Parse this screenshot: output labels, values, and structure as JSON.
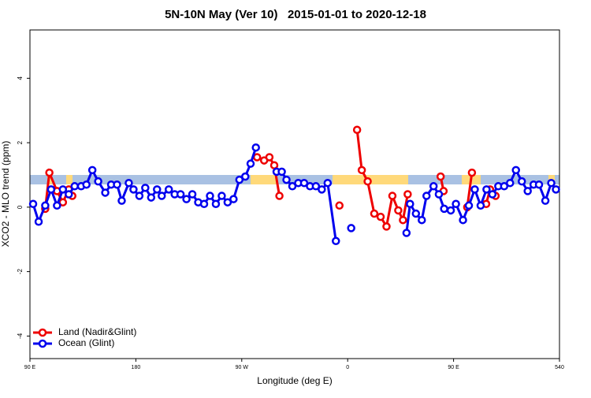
{
  "chart_data": {
    "type": "line",
    "title": "5N-10N May (Ver 10)   2015-01-01 to 2020-12-18",
    "x_label": "Longitude (deg E)",
    "y_label": "XCO2 - MLO trend (ppm)",
    "xlim": [
      90,
      540
    ],
    "ylim": [
      -4.7,
      5.5
    ],
    "xticks": [
      {
        "value": 90,
        "label": "90 E"
      },
      180,
      {
        "value": 270,
        "label": "90 W"
      },
      {
        "value": 360,
        "label": "0"
      },
      {
        "value": 450,
        "label": "90 E"
      },
      540
    ],
    "yticks": [
      -4,
      -2,
      0,
      2,
      4
    ],
    "legend": "bottom-left",
    "series": [
      {
        "name": "Land (Nadir&Glint)",
        "color": "#ee0000",
        "x": [
          103,
          106.5,
          113,
          118,
          123,
          126,
          null,
          283,
          289,
          293.5,
          297.6,
          302,
          null,
          353,
          null,
          368,
          372,
          377,
          382.6,
          388,
          393,
          398,
          403,
          407,
          411,
          null,
          439,
          441.5,
          null,
          461.6,
          465.6,
          null,
          477.7,
          481,
          485.7
        ],
        "values": [
          -0.05,
          1.07,
          0.5,
          0.15,
          0.55,
          0.35,
          null,
          1.55,
          1.45,
          1.55,
          1.3,
          0.35,
          null,
          0.05,
          null,
          2.4,
          1.15,
          0.8,
          -0.2,
          -0.3,
          -0.6,
          0.35,
          -0.1,
          -0.4,
          0.4,
          null,
          0.95,
          0.5,
          null,
          0,
          1.07,
          null,
          0.1,
          0.55,
          0.35
        ]
      },
      {
        "name": "Ocean (Glint)",
        "color": "#0000ee",
        "x": [
          92.7,
          97.4,
          103,
          108,
          113,
          118,
          123,
          128,
          133.5,
          138,
          143,
          148,
          154,
          159,
          164,
          168,
          174,
          178,
          183,
          188,
          193,
          198,
          202,
          208,
          213,
          218,
          223,
          228,
          233,
          238,
          243,
          248,
          253,
          258,
          263,
          268,
          273,
          277.5,
          282,
          null,
          299.6,
          304,
          308,
          313,
          318,
          323,
          328,
          333,
          338,
          343,
          350,
          null,
          363,
          null,
          410,
          413,
          418,
          423,
          427,
          433,
          437.5,
          442,
          447.6,
          452,
          458,
          463,
          468,
          473,
          478,
          483,
          488,
          493,
          498,
          503,
          508,
          513,
          518,
          522.6,
          528,
          533,
          537
        ],
        "values": [
          0.1,
          -0.45,
          0.05,
          0.55,
          0.05,
          0.55,
          0.4,
          0.65,
          0.65,
          0.7,
          1.15,
          0.8,
          0.45,
          0.7,
          0.7,
          0.2,
          0.75,
          0.55,
          0.35,
          0.6,
          0.3,
          0.55,
          0.35,
          0.55,
          0.4,
          0.4,
          0.25,
          0.4,
          0.15,
          0.1,
          0.35,
          0.1,
          0.35,
          0.15,
          0.25,
          0.85,
          0.95,
          1.35,
          1.85,
          null,
          1.1,
          1.1,
          0.85,
          0.65,
          0.75,
          0.75,
          0.65,
          0.65,
          0.55,
          0.75,
          -1.05,
          null,
          -0.65,
          null,
          -0.8,
          0.1,
          -0.2,
          -0.4,
          0.35,
          0.65,
          0.4,
          -0.05,
          -0.1,
          0.1,
          -0.4,
          0.05,
          0.55,
          0.05,
          0.55,
          0.4,
          0.65,
          0.65,
          0.75,
          1.15,
          0.8,
          0.5,
          0.7,
          0.7,
          0.2,
          0.75,
          0.55
        ]
      }
    ]
  }
}
